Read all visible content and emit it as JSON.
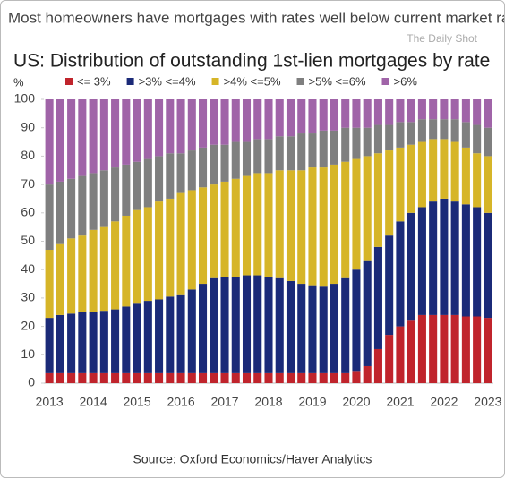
{
  "chart_data": {
    "type": "stacked_bar",
    "headline": "Most homeowners have mortgages with rates well below current market rates",
    "watermark": "The Daily Shot",
    "title": "US: Distribution of outstanding 1st-lien mortgages by rate",
    "ylabel": "%",
    "source": "Source: Oxford Economics/Haver Analytics",
    "categories": [
      "2013",
      null,
      null,
      null,
      "2014",
      null,
      null,
      null,
      "2015",
      null,
      null,
      null,
      "2016",
      null,
      null,
      null,
      "2017",
      null,
      null,
      null,
      "2018",
      null,
      null,
      null,
      "2019",
      null,
      null,
      null,
      "2020",
      null,
      null,
      null,
      "2021",
      null,
      null,
      null,
      "2022",
      null,
      null,
      null,
      "2023"
    ],
    "ylim": [
      0,
      100
    ],
    "yticks": [
      0,
      10,
      20,
      30,
      40,
      50,
      60,
      70,
      80,
      90,
      100
    ],
    "series": [
      {
        "name": "<= 3%",
        "color": "#c0242c",
        "values": [
          3.5,
          3.5,
          3.5,
          3.5,
          3.5,
          3.5,
          3.5,
          3.5,
          3.5,
          3.5,
          3.5,
          3.5,
          3.5,
          3.5,
          3.5,
          3.5,
          3.5,
          3.5,
          3.5,
          3.5,
          3.5,
          3.5,
          3.5,
          3.5,
          3.5,
          3.5,
          3.5,
          3.5,
          4,
          6,
          12,
          17,
          20,
          22,
          24,
          24,
          24,
          24,
          23.5,
          23.5,
          23
        ]
      },
      {
        "name": ">3% <=4%",
        "color": "#1b2a78",
        "values": [
          19.5,
          20.5,
          21,
          21.5,
          21.5,
          22,
          22.5,
          23.5,
          24.5,
          25.5,
          26,
          27,
          27.5,
          29.5,
          31.5,
          33.5,
          34,
          34,
          34.5,
          34.5,
          34,
          33.5,
          32.5,
          31.5,
          31,
          30.5,
          31.5,
          33.5,
          36,
          37,
          36,
          35,
          37,
          38,
          38,
          40,
          41,
          40,
          39.5,
          38.5,
          37
        ]
      },
      {
        "name": ">4% <=5%",
        "color": "#d6b528",
        "values": [
          24,
          25,
          26.5,
          27,
          29,
          29.5,
          31,
          32,
          33,
          33,
          34.5,
          34.5,
          36,
          35,
          34,
          33,
          33.5,
          34.5,
          35,
          36,
          36.5,
          38,
          39,
          40,
          41.5,
          42,
          42,
          41,
          39,
          37,
          33,
          30,
          26,
          24,
          23,
          22,
          21,
          21,
          20,
          19,
          20
        ]
      },
      {
        "name": ">5% <=6%",
        "color": "#7f7f7f",
        "values": [
          23,
          22,
          21,
          21,
          20,
          20,
          19,
          18,
          17,
          17,
          16,
          16,
          14,
          14,
          14,
          14,
          13,
          13,
          12,
          12,
          12,
          12,
          12,
          13,
          12,
          13,
          12,
          12,
          11,
          10,
          10,
          9,
          9,
          8,
          8,
          7,
          7,
          8,
          9,
          10,
          10
        ]
      },
      {
        "name": ">6%",
        "color": "#a064a8",
        "values": [
          30,
          29,
          28,
          27,
          26,
          25,
          24,
          23,
          22,
          21,
          20,
          19,
          19,
          18,
          17,
          16,
          16,
          15,
          15,
          14,
          14,
          13,
          13,
          12,
          12,
          11,
          11,
          10,
          10,
          10,
          9,
          9,
          8,
          8,
          7,
          7,
          7,
          7,
          8,
          9,
          10
        ]
      }
    ]
  }
}
